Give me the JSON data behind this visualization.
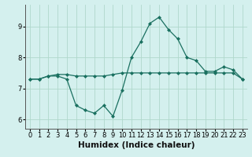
{
  "xlabel": "Humidex (Indice chaleur)",
  "background_color": "#d4f0ee",
  "grid_color": "#b0d8cc",
  "line_color": "#1a7060",
  "x_values": [
    0,
    1,
    2,
    3,
    4,
    5,
    6,
    7,
    8,
    9,
    10,
    11,
    12,
    13,
    14,
    15,
    16,
    17,
    18,
    19,
    20,
    21,
    22,
    23
  ],
  "line1_y": [
    7.3,
    7.3,
    7.4,
    7.45,
    7.45,
    7.4,
    7.4,
    7.4,
    7.4,
    7.45,
    7.5,
    7.5,
    7.5,
    7.5,
    7.5,
    7.5,
    7.5,
    7.5,
    7.5,
    7.5,
    7.5,
    7.5,
    7.5,
    7.3
  ],
  "line2_y": [
    7.3,
    7.3,
    7.4,
    7.4,
    7.3,
    6.45,
    6.3,
    6.2,
    6.45,
    6.1,
    6.95,
    8.0,
    8.5,
    9.1,
    9.3,
    8.9,
    8.6,
    8.0,
    7.9,
    7.55,
    7.55,
    7.7,
    7.6,
    7.3
  ],
  "ylim": [
    5.7,
    9.7
  ],
  "xlim": [
    -0.5,
    23.5
  ],
  "yticks": [
    6,
    7,
    8,
    9
  ],
  "xticks": [
    0,
    1,
    2,
    3,
    4,
    5,
    6,
    7,
    8,
    9,
    10,
    11,
    12,
    13,
    14,
    15,
    16,
    17,
    18,
    19,
    20,
    21,
    22,
    23
  ],
  "tick_fontsize": 6.0,
  "xlabel_fontsize": 7.5,
  "marker": "D",
  "markersize": 2.0,
  "linewidth": 0.9
}
